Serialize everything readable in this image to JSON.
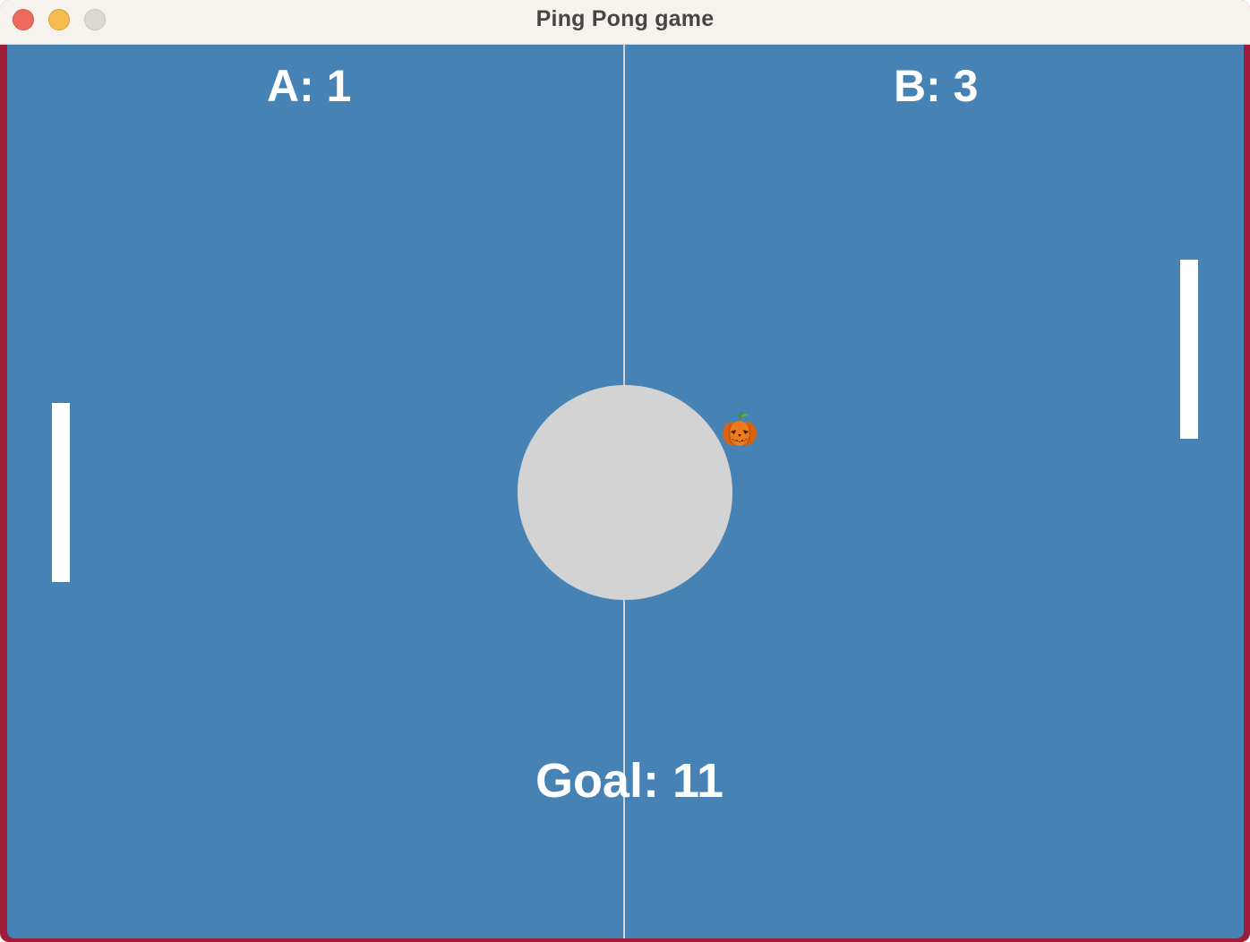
{
  "window": {
    "title": "Ping Pong game"
  },
  "scoreboard": {
    "player_a": {
      "label": "A",
      "score": "1"
    },
    "player_b": {
      "label": "B",
      "score": "3"
    },
    "separator": ": "
  },
  "goal": {
    "label": "Goal",
    "value": "11",
    "separator": ": "
  },
  "ball": {
    "icon": "jack-o-lantern-icon"
  },
  "colors": {
    "court": "#4682b4",
    "center_circle": "#d3d3d3",
    "paddle": "#ffffff",
    "window_frame": "#9e1c38",
    "text": "#ffffff"
  }
}
